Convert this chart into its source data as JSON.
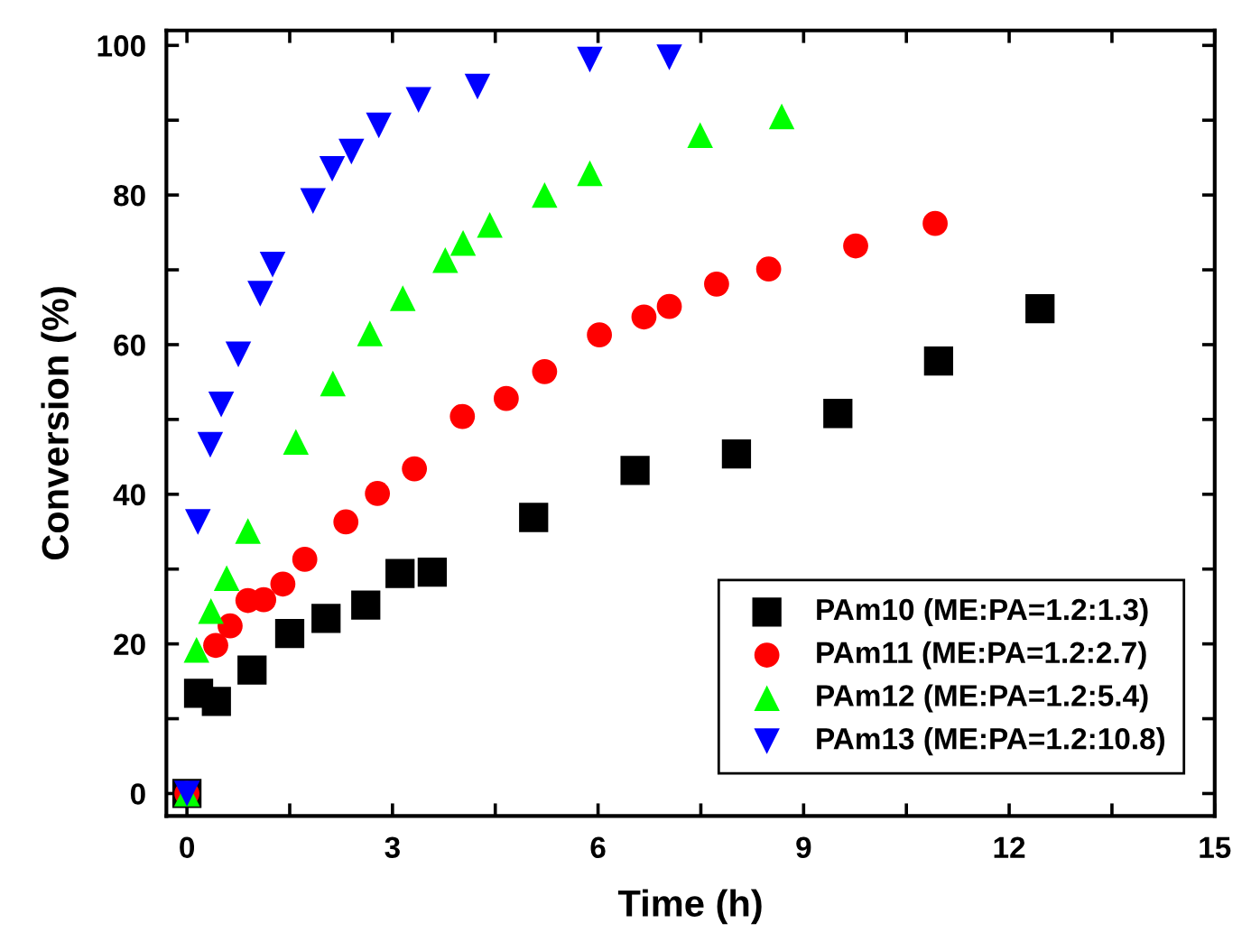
{
  "chart_data": {
    "type": "scatter",
    "xlabel": "Time (h)",
    "ylabel": "Conversion (%)",
    "xlim": [
      -0.3,
      15
    ],
    "ylim": [
      -3,
      102
    ],
    "xticks": [
      0,
      {
        "value": 1.5,
        "label": null
      },
      3,
      {
        "value": 4.5,
        "label": null
      },
      6,
      {
        "value": 7.5,
        "label": null
      },
      9,
      {
        "value": 10.5,
        "label": null
      },
      12,
      {
        "value": 13.5,
        "label": null
      },
      15
    ],
    "yticks": [
      0,
      {
        "value": 10,
        "label": null
      },
      20,
      {
        "value": 30,
        "label": null
      },
      40,
      {
        "value": 50,
        "label": null
      },
      60,
      {
        "value": 70,
        "label": null
      },
      80,
      {
        "value": 90,
        "label": null
      },
      100
    ],
    "grid": false,
    "legend": "bottom right",
    "series": [
      {
        "name": "PAm10 (ME:PA=1.2:1.3)",
        "color": "#000000",
        "marker": "square",
        "x": [
          0,
          0.17,
          0.43,
          0.95,
          1.5,
          2.03,
          2.61,
          3.11,
          3.58,
          5.06,
          6.54,
          8.02,
          9.5,
          10.97,
          12.45
        ],
        "values": [
          0,
          13.4,
          12.3,
          16.5,
          21.4,
          23.4,
          25.2,
          29.4,
          29.6,
          36.9,
          43.2,
          45.4,
          50.8,
          57.8,
          64.8
        ]
      },
      {
        "name": "PAm11 (ME:PA=1.2:2.7)",
        "color": "#ff0000",
        "marker": "circle",
        "x": [
          0,
          0.42,
          0.63,
          0.89,
          1.12,
          1.4,
          1.72,
          2.32,
          2.78,
          3.32,
          4.02,
          4.66,
          5.22,
          6.02,
          6.67,
          7.04,
          7.73,
          8.49,
          9.76,
          10.92
        ],
        "values": [
          0,
          19.8,
          22.4,
          25.8,
          25.9,
          28.0,
          31.3,
          36.3,
          40.1,
          43.4,
          50.4,
          52.8,
          56.4,
          61.3,
          63.7,
          65.1,
          68.1,
          70.1,
          73.2,
          76.2
        ]
      },
      {
        "name": "PAm12 (ME:PA=1.2:5.4)",
        "color": "#00ff00",
        "marker": "triangle",
        "x": [
          0,
          0.14,
          0.35,
          0.58,
          0.89,
          1.59,
          2.13,
          2.67,
          3.15,
          3.77,
          4.03,
          4.42,
          5.22,
          5.88,
          7.49,
          8.68
        ],
        "values": [
          0,
          19.2,
          24.4,
          28.8,
          35.1,
          47.0,
          54.8,
          61.5,
          66.2,
          71.3,
          73.6,
          76.0,
          80.0,
          82.9,
          88.0,
          90.5
        ]
      },
      {
        "name": "PAm13 (ME:PA=1.2:10.8)",
        "color": "#0000ff",
        "marker": "triangle_down",
        "x": [
          0,
          0.16,
          0.34,
          0.5,
          0.75,
          1.07,
          1.25,
          1.84,
          2.12,
          2.4,
          2.8,
          3.38,
          4.24,
          5.88,
          7.04
        ],
        "values": [
          0,
          36.3,
          46.6,
          52.0,
          58.7,
          66.8,
          70.7,
          79.2,
          83.5,
          85.8,
          89.3,
          92.7,
          94.5,
          98.1,
          98.4
        ]
      }
    ]
  }
}
